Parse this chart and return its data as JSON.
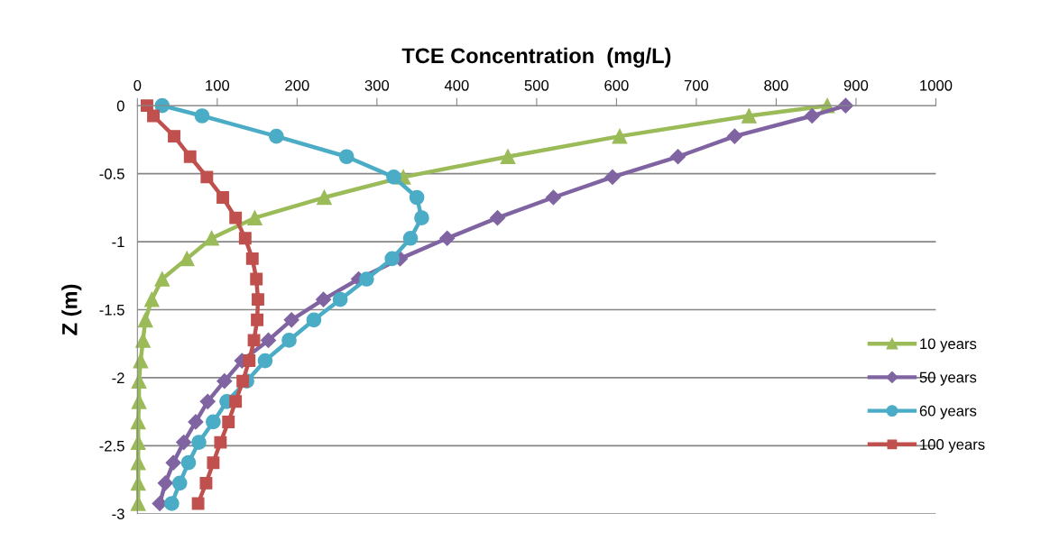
{
  "chart_data": {
    "type": "line",
    "title": "TCE Concentration  (mg/L)",
    "ylabel": "Z (m)",
    "xlim": [
      0,
      1000
    ],
    "xticks": [
      0,
      100,
      200,
      300,
      400,
      500,
      600,
      700,
      800,
      900,
      1000
    ],
    "ylim": [
      -3,
      0
    ],
    "yticks": [
      -3,
      -2.5,
      -2,
      -1.5,
      -1,
      -0.5,
      0
    ],
    "grid": "y",
    "legend": "right",
    "line_style": "solid",
    "series": [
      {
        "name": "10 years",
        "color": "#9bbb59",
        "marker": "triangle",
        "x": [
          864,
          766,
          604,
          464,
          333,
          234,
          147,
          93,
          62,
          31,
          18,
          10,
          7,
          4,
          2,
          2,
          1,
          1,
          1,
          1,
          1
        ],
        "values": [
          0,
          -0.075,
          -0.225,
          -0.375,
          -0.525,
          -0.675,
          -0.825,
          -0.975,
          -1.125,
          -1.275,
          -1.425,
          -1.575,
          -1.725,
          -1.875,
          -2.025,
          -2.175,
          -2.325,
          -2.475,
          -2.625,
          -2.775,
          -2.925
        ]
      },
      {
        "name": "50 years",
        "color": "#8064a2",
        "marker": "diamond",
        "x": [
          887,
          845,
          748,
          677,
          595,
          521,
          451,
          388,
          329,
          277,
          233,
          193,
          164,
          131,
          109,
          88,
          73,
          58,
          45,
          35,
          28
        ],
        "values": [
          0,
          -0.075,
          -0.225,
          -0.375,
          -0.525,
          -0.675,
          -0.825,
          -0.975,
          -1.125,
          -1.275,
          -1.425,
          -1.575,
          -1.725,
          -1.875,
          -2.025,
          -2.175,
          -2.325,
          -2.475,
          -2.625,
          -2.775,
          -2.925
        ]
      },
      {
        "name": "60 years",
        "color": "#4bacc6",
        "marker": "circle",
        "x": [
          31,
          81,
          174,
          262,
          321,
          350,
          356,
          342,
          319,
          287,
          254,
          221,
          190,
          160,
          137,
          112,
          95,
          77,
          64,
          53,
          43
        ],
        "values": [
          0,
          -0.075,
          -0.225,
          -0.375,
          -0.525,
          -0.675,
          -0.825,
          -0.975,
          -1.125,
          -1.275,
          -1.425,
          -1.575,
          -1.725,
          -1.875,
          -2.025,
          -2.175,
          -2.325,
          -2.475,
          -2.625,
          -2.775,
          -2.925
        ]
      },
      {
        "name": "100 years",
        "color": "#c0504d",
        "marker": "square",
        "x": [
          12,
          20,
          46,
          66,
          87,
          107,
          123,
          135,
          144,
          149,
          151,
          150,
          146,
          140,
          132,
          123,
          114,
          104,
          95,
          86,
          76
        ],
        "values": [
          0,
          -0.075,
          -0.225,
          -0.375,
          -0.525,
          -0.675,
          -0.825,
          -0.975,
          -1.125,
          -1.275,
          -1.425,
          -1.575,
          -1.725,
          -1.875,
          -2.025,
          -2.175,
          -2.325,
          -2.475,
          -2.625,
          -2.775,
          -2.925
        ]
      }
    ]
  }
}
